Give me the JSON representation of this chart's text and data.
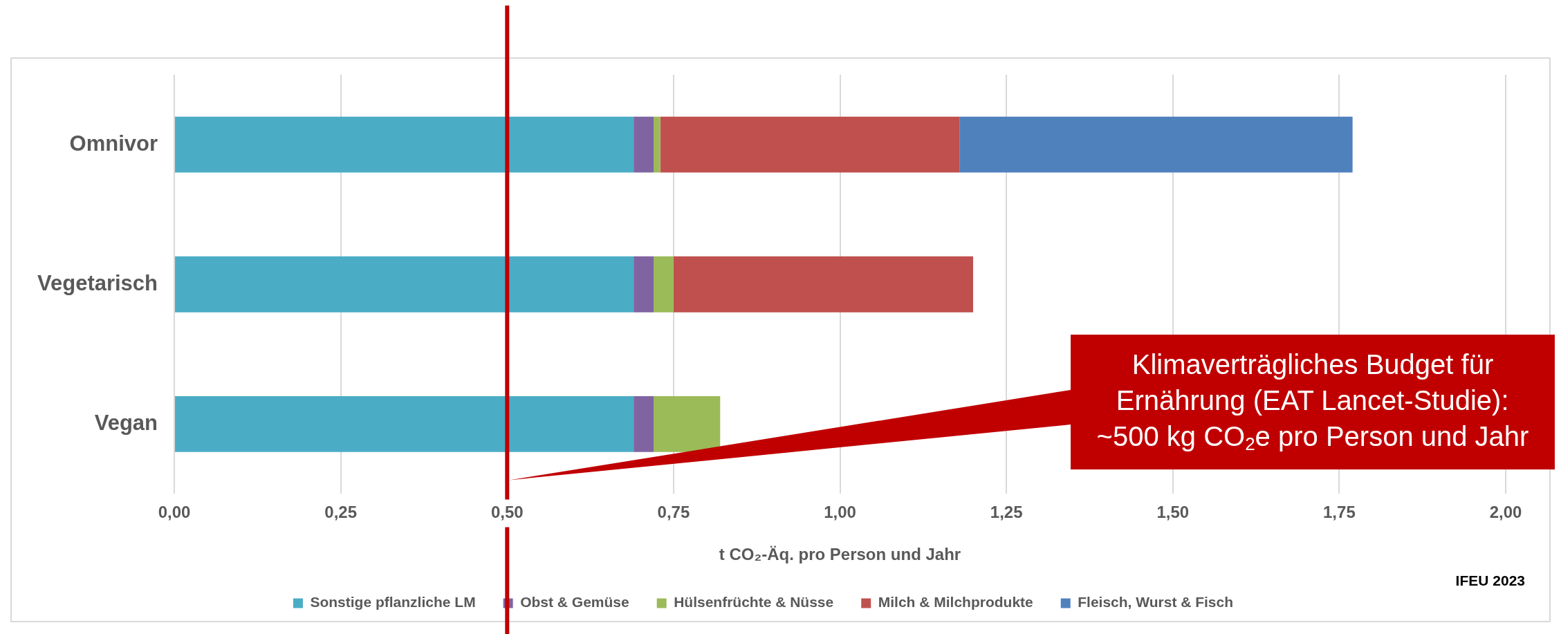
{
  "chart_data": {
    "type": "bar",
    "orientation": "horizontal",
    "stacked": true,
    "categories": [
      "Omnivor",
      "Vegetarisch",
      "Vegan"
    ],
    "series": [
      {
        "name": "Sonstige pflanzliche LM",
        "color": "#4bacc6",
        "values": [
          0.69,
          0.69,
          0.69
        ]
      },
      {
        "name": "Obst & Gemüse",
        "color": "#8064a2",
        "values": [
          0.03,
          0.03,
          0.03
        ]
      },
      {
        "name": "Hülsenfrüchte & Nüsse",
        "color": "#9bbb59",
        "values": [
          0.01,
          0.03,
          0.1
        ]
      },
      {
        "name": "Milch & Milchprodukte",
        "color": "#c0504d",
        "values": [
          0.45,
          0.45,
          null
        ]
      },
      {
        "name": "Fleisch, Wurst & Fisch",
        "color": "#4f81bd",
        "values": [
          0.59,
          null,
          null
        ]
      }
    ],
    "xlabel": "t CO₂-Äq. pro Person und Jahr",
    "xlim": [
      0,
      2
    ],
    "xticks": [
      {
        "value": 0,
        "label": "0,00"
      },
      {
        "value": 0.25,
        "label": "0,25"
      },
      {
        "value": 0.5,
        "label": "0,50"
      },
      {
        "value": 0.75,
        "label": "0,75"
      },
      {
        "value": 1,
        "label": "1,00"
      },
      {
        "value": 1.25,
        "label": "1,25"
      },
      {
        "value": 1.5,
        "label": "1,50"
      },
      {
        "value": 1.75,
        "label": "1,75"
      },
      {
        "value": 2,
        "label": "2,00"
      }
    ],
    "grid": "x",
    "legend": "bottom",
    "ref_lines": [
      {
        "axis": "x",
        "value": 0.5,
        "color": "#c00000",
        "label": "Klimaverträgliches Budget für Ernährung (EAT Lancet-Studie): ~500 kg CO$_{2}$e pro Person und Jahr"
      }
    ],
    "annotations": [
      "IFEU 2023"
    ]
  }
}
